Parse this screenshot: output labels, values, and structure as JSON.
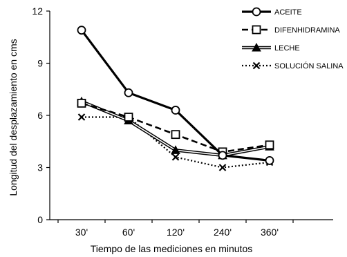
{
  "chart_data": {
    "type": "line",
    "xlabel": "Tiempo de las mediciones en minutos",
    "ylabel": "Longitud del desplazamiento en cms",
    "categories": [
      "30'",
      "60'",
      "120'",
      "240'",
      "360'"
    ],
    "ylim": [
      0,
      12
    ],
    "yticks": [
      "0",
      "3",
      "6",
      "9",
      "12"
    ],
    "grid": false,
    "legend_position": "top-right",
    "series": [
      {
        "name": "ACEITE",
        "values": [
          10.9,
          7.3,
          6.3,
          3.7,
          3.4
        ],
        "line_style": "solid-thick",
        "marker": "open-circle",
        "color": "#000000"
      },
      {
        "name": "DIFENHIDRAMINA",
        "values": [
          6.7,
          5.9,
          4.9,
          3.9,
          4.3
        ],
        "line_style": "dashed",
        "marker": "open-square",
        "color": "#000000"
      },
      {
        "name": "LECHE",
        "values": [
          6.8,
          5.7,
          4.0,
          3.7,
          4.2
        ],
        "line_style": "double",
        "marker": "filled-triangle",
        "color": "#000000"
      },
      {
        "name": "SOLUCIÓN SALINA",
        "values": [
          5.9,
          5.9,
          3.6,
          3.0,
          3.3
        ],
        "line_style": "dotted",
        "marker": "x",
        "color": "#000000"
      }
    ]
  }
}
